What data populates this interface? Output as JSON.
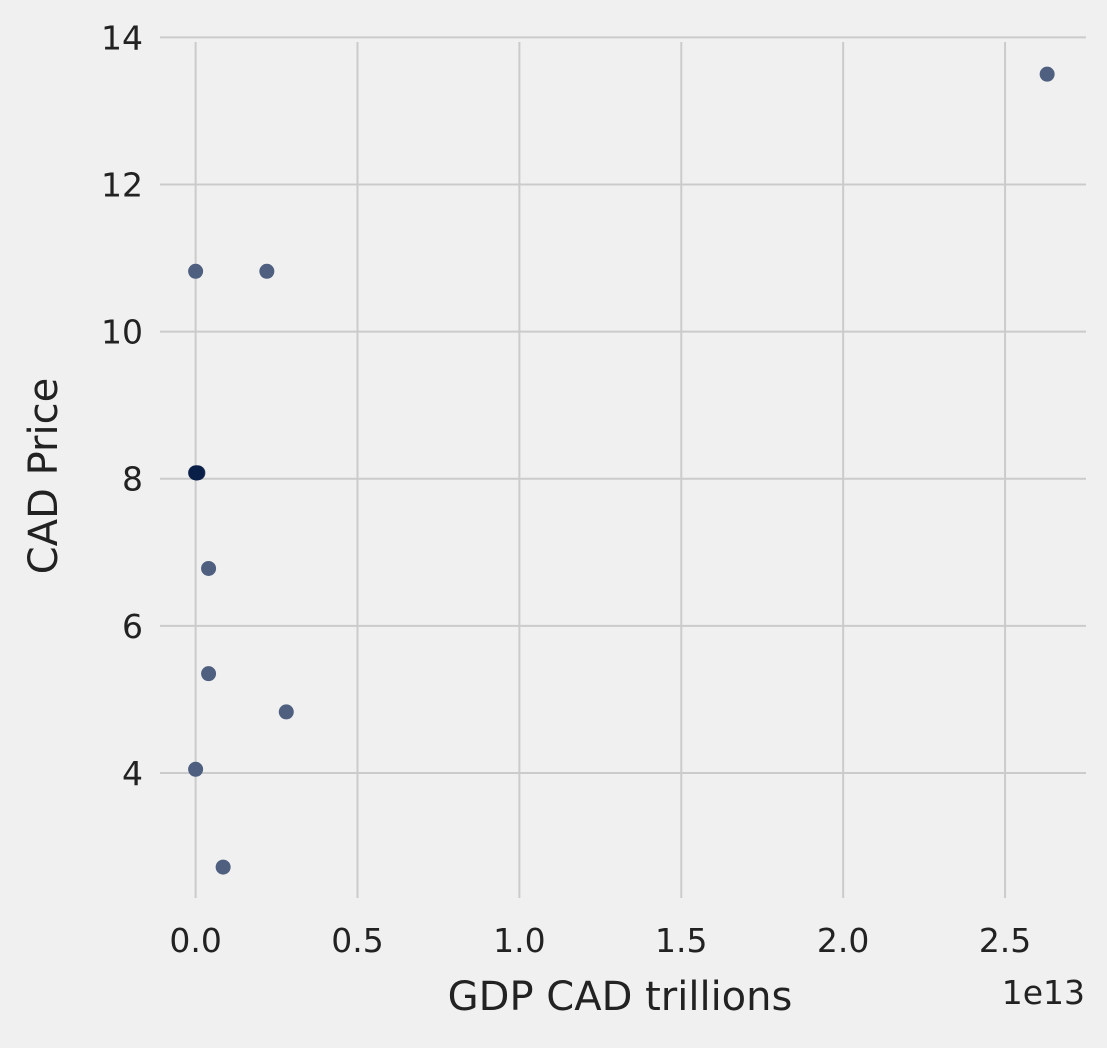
{
  "chart_data": {
    "type": "scatter",
    "title": "",
    "xlabel": "GDP CAD trillions",
    "ylabel": "CAD Price",
    "x_offset_text": "1e13",
    "x_scale": 10000000000000.0,
    "xlim": [
      -0.11,
      2.75
    ],
    "ylim": [
      2.3,
      14.1
    ],
    "x_ticks": [
      0.0,
      0.5,
      1.0,
      1.5,
      2.0,
      2.5
    ],
    "x_tick_labels": [
      "0.0",
      "0.5",
      "1.0",
      "1.5",
      "2.0",
      "2.5"
    ],
    "y_ticks": [
      4,
      6,
      8,
      10,
      12,
      14
    ],
    "y_tick_labels": [
      "4",
      "6",
      "8",
      "10",
      "12",
      "14"
    ],
    "grid": true,
    "marker_color": "#4e5f7f",
    "dense_marker_color": "#0b2048",
    "series": [
      {
        "name": "CAD Price",
        "x": [
          2.63,
          0.0,
          0.22,
          0.0,
          0.001,
          0.003,
          0.005,
          0.007,
          0.04,
          0.04,
          0.28,
          0.0,
          0.085
        ],
        "y": [
          13.5,
          10.82,
          10.82,
          8.08,
          8.08,
          8.08,
          8.08,
          8.08,
          6.78,
          5.35,
          4.83,
          4.05,
          2.72
        ]
      }
    ]
  }
}
